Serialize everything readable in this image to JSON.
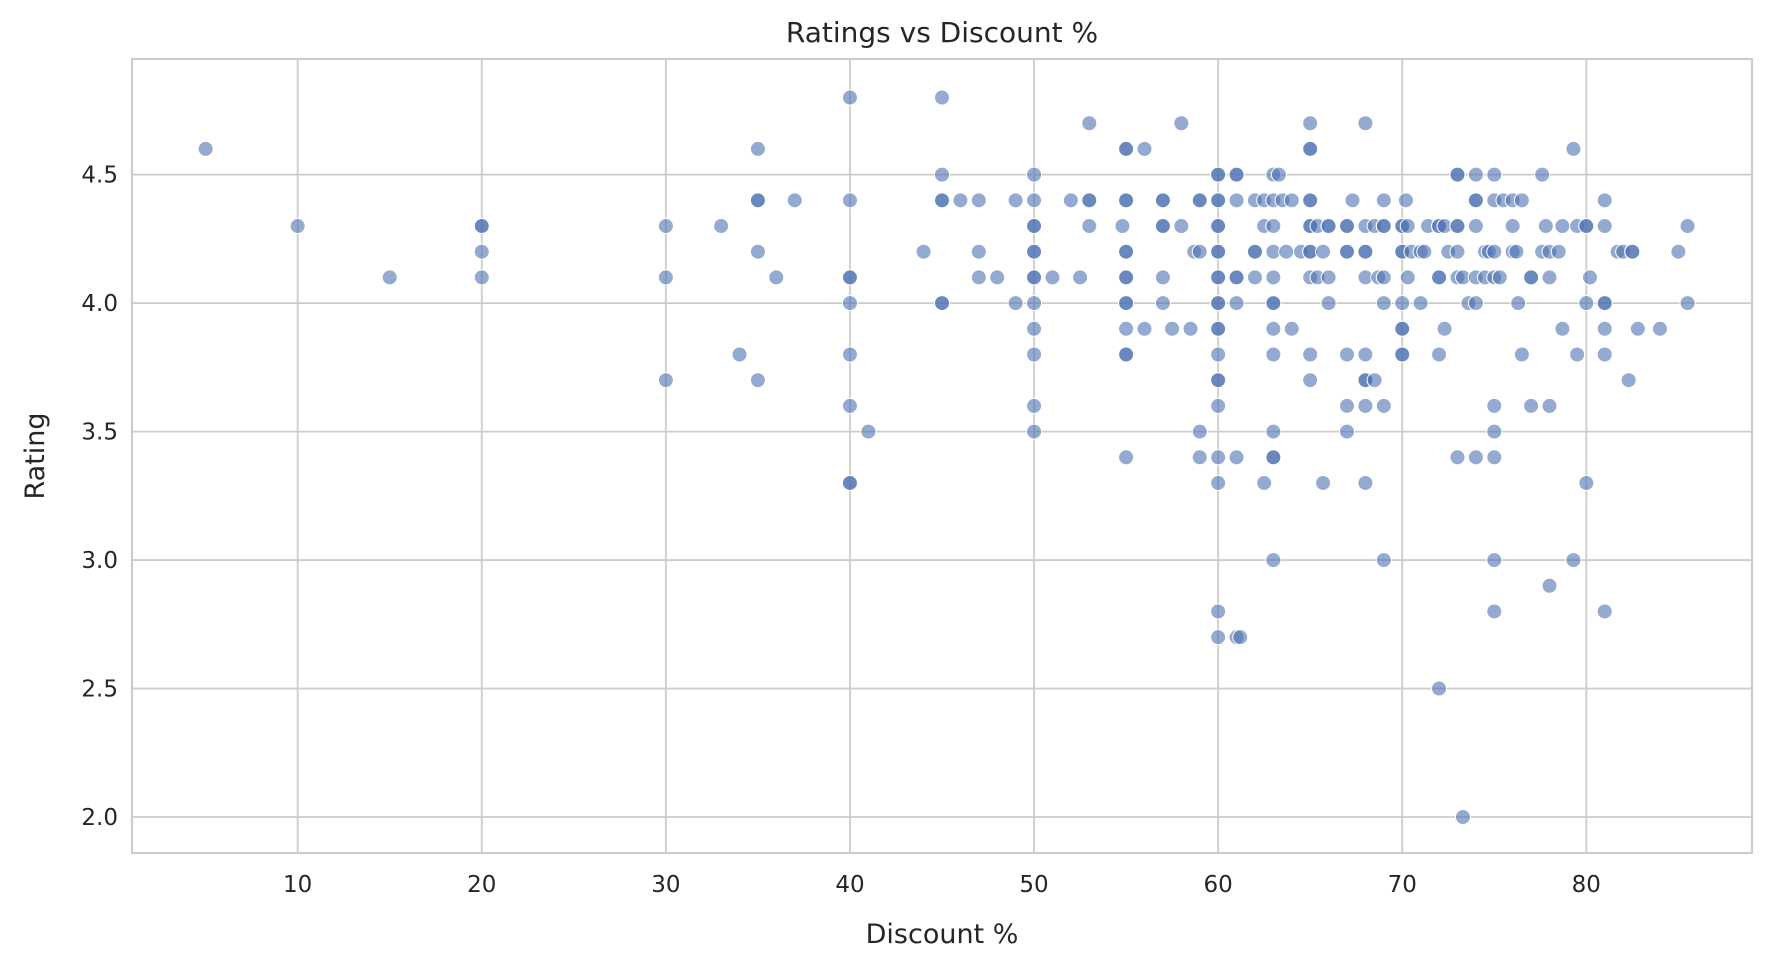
{
  "chart_data": {
    "type": "scatter",
    "title": "Ratings vs Discount %",
    "xlabel": "Discount %",
    "ylabel": "Rating",
    "xlim": [
      1,
      89
    ],
    "ylim": [
      1.86,
      4.95
    ],
    "xticks": [
      10,
      20,
      30,
      40,
      50,
      60,
      70,
      80
    ],
    "yticks": [
      2.0,
      2.5,
      3.0,
      3.5,
      4.0,
      4.5
    ],
    "grid": true,
    "marker_color": "#4c72b0",
    "points": [
      [
        5,
        4.6
      ],
      [
        10,
        4.3
      ],
      [
        15,
        4.1
      ],
      [
        20,
        4.3
      ],
      [
        20,
        4.3
      ],
      [
        20,
        4.2
      ],
      [
        20,
        4.1
      ],
      [
        30,
        4.3
      ],
      [
        30,
        4.1
      ],
      [
        30,
        3.7
      ],
      [
        33,
        4.3
      ],
      [
        34,
        3.8
      ],
      [
        35,
        4.6
      ],
      [
        35,
        4.4
      ],
      [
        35,
        4.4
      ],
      [
        35,
        4.2
      ],
      [
        35,
        3.7
      ],
      [
        36,
        4.1
      ],
      [
        37,
        4.4
      ],
      [
        40,
        4.8
      ],
      [
        40,
        4.4
      ],
      [
        40,
        4.1
      ],
      [
        40,
        4.1
      ],
      [
        40,
        4.0
      ],
      [
        40,
        3.8
      ],
      [
        40,
        3.6
      ],
      [
        40,
        3.3
      ],
      [
        40,
        3.3
      ],
      [
        41,
        3.5
      ],
      [
        44,
        4.2
      ],
      [
        45,
        4.8
      ],
      [
        45,
        4.5
      ],
      [
        45,
        4.4
      ],
      [
        45,
        4.4
      ],
      [
        45,
        4.0
      ],
      [
        45,
        4.0
      ],
      [
        46,
        4.4
      ],
      [
        47,
        4.4
      ],
      [
        47,
        4.2
      ],
      [
        47,
        4.1
      ],
      [
        48,
        4.1
      ],
      [
        49,
        4.4
      ],
      [
        49,
        4.0
      ],
      [
        50,
        4.5
      ],
      [
        50,
        4.4
      ],
      [
        50,
        4.3
      ],
      [
        50,
        4.3
      ],
      [
        50,
        4.2
      ],
      [
        50,
        4.2
      ],
      [
        50,
        4.1
      ],
      [
        50,
        4.1
      ],
      [
        50,
        4.0
      ],
      [
        50,
        3.9
      ],
      [
        50,
        3.8
      ],
      [
        50,
        3.6
      ],
      [
        50,
        3.5
      ],
      [
        51,
        4.1
      ],
      [
        52,
        4.4
      ],
      [
        52.5,
        4.1
      ],
      [
        53,
        4.7
      ],
      [
        53,
        4.4
      ],
      [
        53,
        4.4
      ],
      [
        53,
        4.3
      ],
      [
        54.8,
        4.3
      ],
      [
        55,
        4.6
      ],
      [
        55,
        4.6
      ],
      [
        55,
        4.4
      ],
      [
        55,
        4.4
      ],
      [
        55,
        4.2
      ],
      [
        55,
        4.2
      ],
      [
        55,
        4.1
      ],
      [
        55,
        4.1
      ],
      [
        55,
        4.0
      ],
      [
        55,
        4.0
      ],
      [
        55,
        3.9
      ],
      [
        55,
        3.8
      ],
      [
        55,
        3.8
      ],
      [
        55,
        3.4
      ],
      [
        56,
        4.6
      ],
      [
        56,
        3.9
      ],
      [
        57,
        4.4
      ],
      [
        57,
        4.4
      ],
      [
        57,
        4.3
      ],
      [
        57,
        4.3
      ],
      [
        57,
        4.1
      ],
      [
        57,
        4.0
      ],
      [
        57.5,
        3.9
      ],
      [
        58,
        4.7
      ],
      [
        58,
        4.3
      ],
      [
        58.5,
        3.9
      ],
      [
        58.7,
        4.2
      ],
      [
        59,
        4.4
      ],
      [
        59,
        4.4
      ],
      [
        59,
        4.2
      ],
      [
        59,
        3.5
      ],
      [
        59,
        3.4
      ],
      [
        60,
        4.5
      ],
      [
        60,
        4.5
      ],
      [
        60,
        4.4
      ],
      [
        60,
        4.4
      ],
      [
        60,
        4.3
      ],
      [
        60,
        4.3
      ],
      [
        60,
        4.2
      ],
      [
        60,
        4.2
      ],
      [
        60,
        4.1
      ],
      [
        60,
        4.1
      ],
      [
        60,
        4.0
      ],
      [
        60,
        4.0
      ],
      [
        60,
        3.9
      ],
      [
        60,
        3.9
      ],
      [
        60,
        3.8
      ],
      [
        60,
        3.7
      ],
      [
        60,
        3.7
      ],
      [
        60,
        3.6
      ],
      [
        60,
        3.4
      ],
      [
        60,
        3.3
      ],
      [
        60,
        2.8
      ],
      [
        60,
        2.7
      ],
      [
        61,
        4.5
      ],
      [
        61,
        4.5
      ],
      [
        61,
        4.4
      ],
      [
        61,
        4.1
      ],
      [
        61,
        4.1
      ],
      [
        61,
        4.0
      ],
      [
        61,
        3.4
      ],
      [
        61,
        2.7
      ],
      [
        61.2,
        2.7
      ],
      [
        62,
        4.4
      ],
      [
        62,
        4.2
      ],
      [
        62,
        4.2
      ],
      [
        62,
        4.1
      ],
      [
        62.5,
        4.4
      ],
      [
        62.5,
        4.3
      ],
      [
        62.5,
        3.3
      ],
      [
        63,
        4.5
      ],
      [
        63,
        4.4
      ],
      [
        63,
        4.3
      ],
      [
        63,
        4.2
      ],
      [
        63,
        4.1
      ],
      [
        63,
        4.0
      ],
      [
        63,
        4.0
      ],
      [
        63,
        3.9
      ],
      [
        63,
        3.8
      ],
      [
        63,
        3.5
      ],
      [
        63,
        3.4
      ],
      [
        63,
        3.4
      ],
      [
        63,
        3.0
      ],
      [
        63.3,
        4.5
      ],
      [
        63.5,
        4.4
      ],
      [
        63.7,
        4.2
      ],
      [
        64,
        4.4
      ],
      [
        64,
        3.9
      ],
      [
        64.5,
        4.2
      ],
      [
        65,
        4.7
      ],
      [
        65,
        4.6
      ],
      [
        65,
        4.6
      ],
      [
        65,
        4.4
      ],
      [
        65,
        4.4
      ],
      [
        65,
        4.3
      ],
      [
        65,
        4.3
      ],
      [
        65,
        4.2
      ],
      [
        65,
        4.2
      ],
      [
        65,
        4.1
      ],
      [
        65,
        3.8
      ],
      [
        65,
        3.7
      ],
      [
        65.4,
        4.3
      ],
      [
        65.4,
        4.1
      ],
      [
        65.7,
        4.2
      ],
      [
        65.7,
        3.3
      ],
      [
        66,
        4.3
      ],
      [
        66,
        4.3
      ],
      [
        66,
        4.1
      ],
      [
        66,
        4.0
      ],
      [
        67,
        4.3
      ],
      [
        67,
        4.3
      ],
      [
        67,
        4.2
      ],
      [
        67,
        4.2
      ],
      [
        67,
        3.8
      ],
      [
        67,
        3.6
      ],
      [
        67,
        3.5
      ],
      [
        67.3,
        4.4
      ],
      [
        68,
        4.7
      ],
      [
        68,
        4.3
      ],
      [
        68,
        4.2
      ],
      [
        68,
        4.2
      ],
      [
        68,
        4.1
      ],
      [
        68,
        3.8
      ],
      [
        68,
        3.7
      ],
      [
        68,
        3.7
      ],
      [
        68,
        3.6
      ],
      [
        68,
        3.3
      ],
      [
        68.5,
        4.3
      ],
      [
        68.5,
        3.7
      ],
      [
        68.7,
        4.1
      ],
      [
        69,
        4.4
      ],
      [
        69,
        4.3
      ],
      [
        69,
        4.3
      ],
      [
        69,
        4.1
      ],
      [
        69,
        4.0
      ],
      [
        69,
        3.6
      ],
      [
        69,
        3.0
      ],
      [
        70,
        4.3
      ],
      [
        70,
        4.3
      ],
      [
        70,
        4.2
      ],
      [
        70,
        4.2
      ],
      [
        70,
        4.0
      ],
      [
        70,
        3.9
      ],
      [
        70,
        3.9
      ],
      [
        70,
        3.8
      ],
      [
        70,
        3.8
      ],
      [
        70.2,
        4.4
      ],
      [
        70.3,
        4.3
      ],
      [
        70.3,
        4.1
      ],
      [
        70.5,
        4.2
      ],
      [
        71,
        4.2
      ],
      [
        71,
        4.0
      ],
      [
        71.2,
        4.2
      ],
      [
        71.4,
        4.3
      ],
      [
        72,
        4.3
      ],
      [
        72,
        4.3
      ],
      [
        72,
        4.1
      ],
      [
        72,
        4.1
      ],
      [
        72,
        3.8
      ],
      [
        72,
        2.5
      ],
      [
        72.3,
        4.3
      ],
      [
        72.3,
        3.9
      ],
      [
        72.5,
        4.2
      ],
      [
        73,
        4.5
      ],
      [
        73,
        4.5
      ],
      [
        73,
        4.3
      ],
      [
        73,
        4.3
      ],
      [
        73,
        4.2
      ],
      [
        73,
        4.1
      ],
      [
        73,
        3.4
      ],
      [
        73.3,
        4.1
      ],
      [
        73.3,
        2.0
      ],
      [
        73.6,
        4.0
      ],
      [
        74,
        4.5
      ],
      [
        74,
        4.4
      ],
      [
        74,
        4.4
      ],
      [
        74,
        4.3
      ],
      [
        74,
        4.0
      ],
      [
        74,
        3.4
      ],
      [
        74,
        4.1
      ],
      [
        74.5,
        4.2
      ],
      [
        74.5,
        4.1
      ],
      [
        74.7,
        4.2
      ],
      [
        75,
        4.5
      ],
      [
        75,
        4.4
      ],
      [
        75,
        4.2
      ],
      [
        75,
        4.1
      ],
      [
        75,
        3.6
      ],
      [
        75,
        3.5
      ],
      [
        75,
        3.4
      ],
      [
        75,
        3.0
      ],
      [
        75,
        2.8
      ],
      [
        75.3,
        4.1
      ],
      [
        75.5,
        4.4
      ],
      [
        76,
        4.4
      ],
      [
        76,
        4.3
      ],
      [
        76,
        4.2
      ],
      [
        76.2,
        4.2
      ],
      [
        76.3,
        4.0
      ],
      [
        76.5,
        4.4
      ],
      [
        76.5,
        3.8
      ],
      [
        77,
        4.1
      ],
      [
        77,
        4.1
      ],
      [
        77,
        3.6
      ],
      [
        77.6,
        4.5
      ],
      [
        77.6,
        4.2
      ],
      [
        77.8,
        4.3
      ],
      [
        78,
        4.2
      ],
      [
        78,
        4.1
      ],
      [
        78,
        3.6
      ],
      [
        78,
        2.9
      ],
      [
        78.5,
        4.2
      ],
      [
        78.7,
        4.3
      ],
      [
        78.7,
        3.9
      ],
      [
        79.3,
        4.6
      ],
      [
        79.3,
        3.0
      ],
      [
        79.5,
        4.3
      ],
      [
        79.5,
        3.8
      ],
      [
        80,
        4.3
      ],
      [
        80,
        4.3
      ],
      [
        80,
        4.0
      ],
      [
        80,
        3.3
      ],
      [
        80.2,
        4.1
      ],
      [
        81,
        4.4
      ],
      [
        81,
        4.3
      ],
      [
        81,
        4.0
      ],
      [
        81,
        4.0
      ],
      [
        81,
        3.9
      ],
      [
        81,
        3.8
      ],
      [
        81,
        2.8
      ],
      [
        81.7,
        4.2
      ],
      [
        82,
        4.2
      ],
      [
        82.3,
        3.7
      ],
      [
        82.5,
        4.2
      ],
      [
        82.5,
        4.2
      ],
      [
        82.8,
        3.9
      ],
      [
        84,
        3.9
      ],
      [
        85,
        4.2
      ],
      [
        85.5,
        4.3
      ],
      [
        85.5,
        4.0
      ]
    ]
  }
}
